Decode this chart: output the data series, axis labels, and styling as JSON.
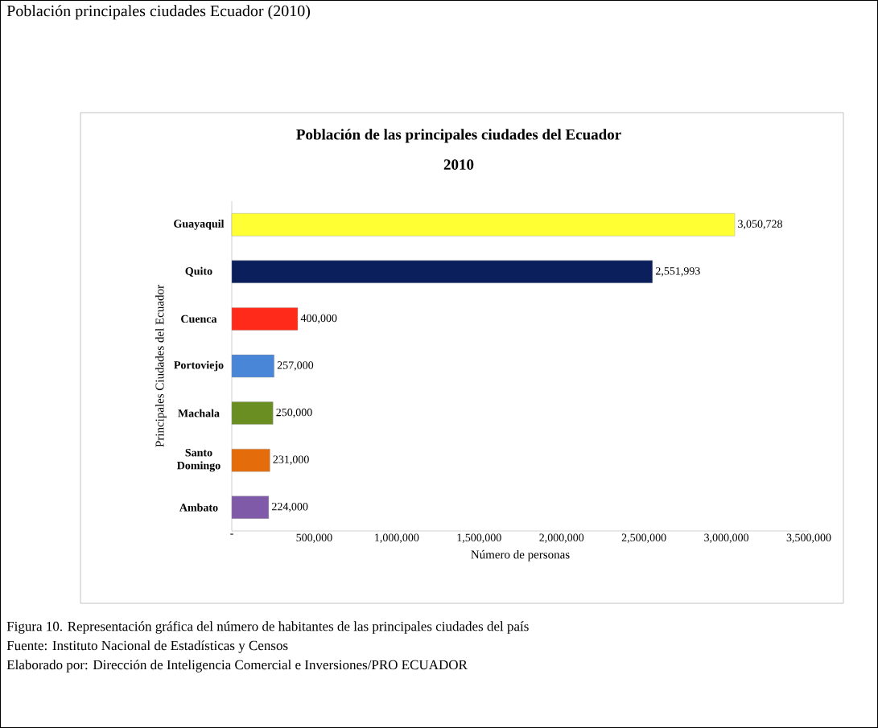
{
  "chart_data": {
    "type": "bar",
    "orientation": "horizontal",
    "title": "Población de las principales ciudades del Ecuador",
    "subtitle": "2010",
    "xlabel": "Número de personas",
    "ylabel": "Principales Ciudades del Ecuador",
    "categories": [
      "Guayaquil",
      "Quito",
      "Cuenca",
      "Portoviejo",
      "Machala",
      "Santo Domingo",
      "Ambato"
    ],
    "values": [
      3050728,
      2551993,
      400000,
      257000,
      250000,
      231000,
      224000
    ],
    "colors": [
      "#ffff33",
      "#0a1f5c",
      "#ff2a1a",
      "#4a86d8",
      "#6b8e23",
      "#e46c0a",
      "#7f5aa8"
    ],
    "value_labels": [
      "3,050,728",
      "2,551,993",
      "400,000",
      "257,000",
      "250,000",
      "231,000",
      "224,000"
    ],
    "xlim": [
      0,
      3500000
    ],
    "xticks": [
      {
        "value": 0,
        "label": "-"
      },
      {
        "value": 500000,
        "label": "500,000"
      },
      {
        "value": 1000000,
        "label": "1,000,000"
      },
      {
        "value": 1500000,
        "label": "1,500,000"
      },
      {
        "value": 2000000,
        "label": "2,000,000"
      },
      {
        "value": 2500000,
        "label": "2,500,000"
      },
      {
        "value": 3000000,
        "label": "3,000,000"
      },
      {
        "value": 3500000,
        "label": "3,500,000"
      }
    ],
    "annotations": [
      "Población principales ciudades Ecuador (2010)",
      "Figura 10. Representación gráfica del número de habitantes de las principales ciudades del país",
      "Fuente: Instituto Nacional de Estadísticas y Censos",
      "Elaborado por: Dirección de Inteligencia Comercial e Inversiones/PRO ECUADOR"
    ]
  }
}
